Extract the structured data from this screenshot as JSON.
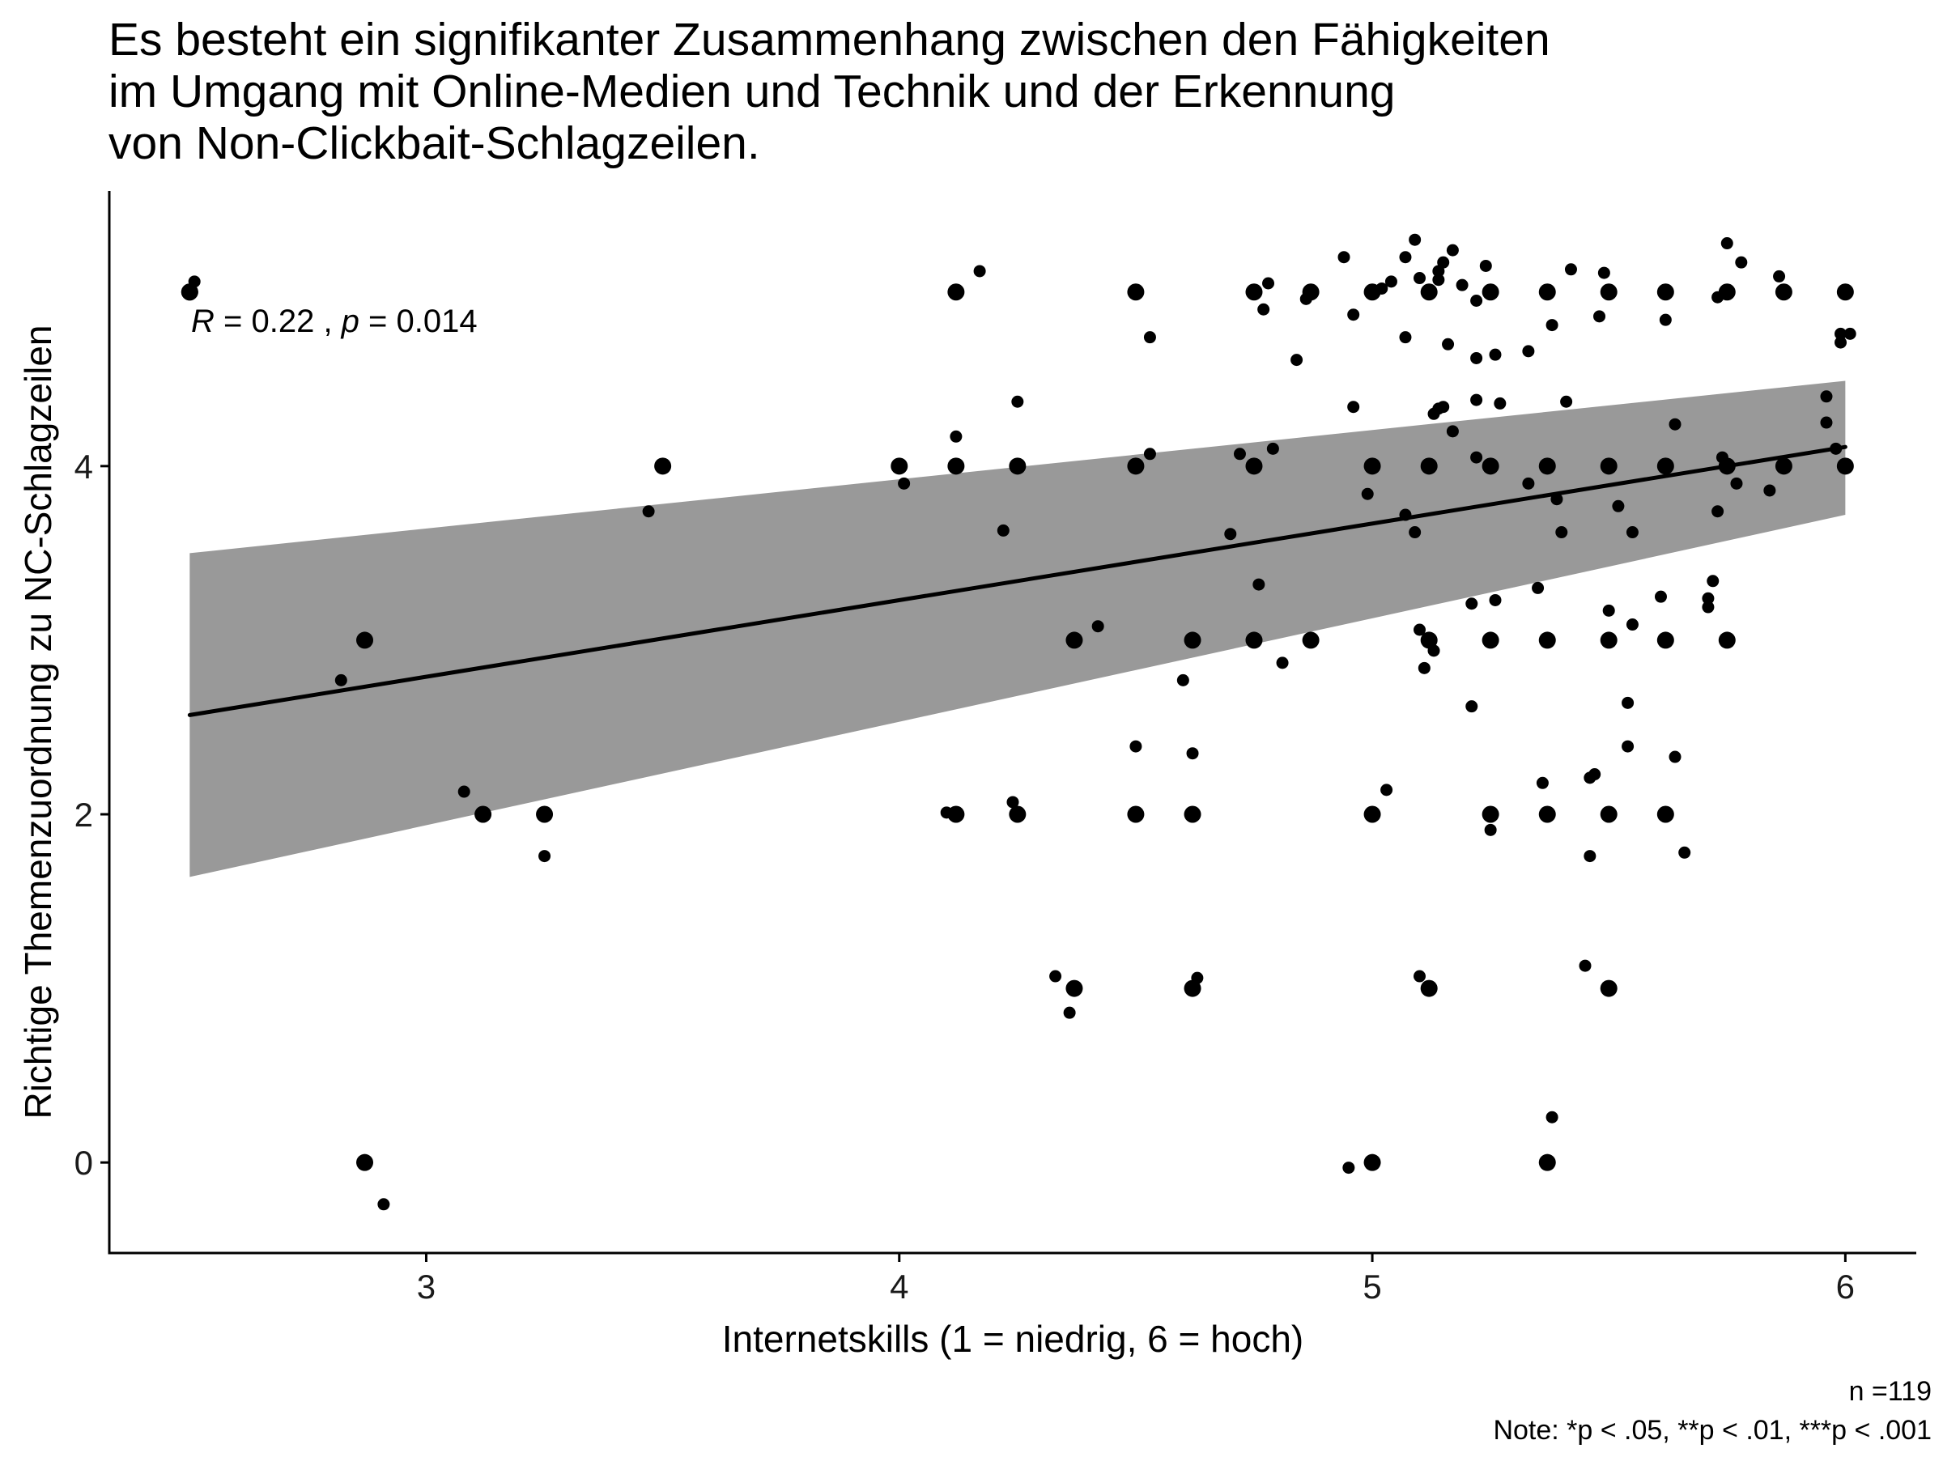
{
  "chart_data": {
    "type": "scatter",
    "title_lines": [
      "Es besteht ein signifikanter Zusammenhang zwischen den Fähigkeiten",
      "im Umgang mit Online-Medien und Technik und der Erkennung",
      "von Non-Clickbait-Schlagzeilen."
    ],
    "xlabel": "Internetskills (1 = niedrig, 6 = hoch)",
    "ylabel": "Richtige Themenzuordnung zu NC-Schlagzeilen",
    "xlim": [
      2.33,
      6.15
    ],
    "ylim": [
      -0.52,
      5.58
    ],
    "x_ticks": [
      3,
      4,
      5,
      6
    ],
    "x_tick_labels": [
      "3",
      "4",
      "5",
      "6"
    ],
    "y_ticks": [
      0,
      2,
      4
    ],
    "y_tick_labels": [
      "0",
      "2",
      "4"
    ],
    "grid": false,
    "annotation": {
      "r_symbol": "R",
      "r_value": " = 0.22 , ",
      "p_symbol": "p",
      "p_value": " = 0.014"
    },
    "caption_lines": [
      "n =119",
      "Note: *p < .05, **p < .01, ***p < .001"
    ],
    "regression": {
      "x": [
        2.5,
        6.0
      ],
      "y": [
        2.57,
        4.11
      ],
      "ci_lower": [
        1.64,
        3.72
      ],
      "ci_upper": [
        3.5,
        4.49
      ],
      "line_color": "#000000",
      "band_color": "#999999"
    },
    "point_color": "#000000",
    "points_large": [
      [
        2.5,
        5.0
      ],
      [
        2.5,
        5.0
      ],
      [
        2.87,
        3.0
      ],
      [
        2.87,
        0.0
      ],
      [
        3.12,
        2.0
      ],
      [
        3.25,
        2.0
      ],
      [
        3.5,
        4.0
      ],
      [
        4.0,
        4.0
      ],
      [
        4.12,
        5.0
      ],
      [
        4.12,
        4.0
      ],
      [
        4.12,
        2.0
      ],
      [
        4.25,
        4.0
      ],
      [
        4.25,
        2.0
      ],
      [
        4.37,
        3.0
      ],
      [
        4.37,
        1.0
      ],
      [
        4.5,
        5.0
      ],
      [
        4.5,
        4.0
      ],
      [
        4.5,
        2.0
      ],
      [
        4.62,
        3.0
      ],
      [
        4.62,
        2.0
      ],
      [
        4.62,
        1.0
      ],
      [
        4.75,
        5.0
      ],
      [
        4.75,
        4.0
      ],
      [
        4.75,
        3.0
      ],
      [
        4.87,
        5.0
      ],
      [
        4.87,
        3.0
      ],
      [
        5.0,
        5.0
      ],
      [
        5.0,
        4.0
      ],
      [
        5.0,
        2.0
      ],
      [
        5.0,
        0.0
      ],
      [
        5.12,
        5.0
      ],
      [
        5.12,
        4.0
      ],
      [
        5.12,
        3.0
      ],
      [
        5.12,
        1.0
      ],
      [
        5.25,
        5.0
      ],
      [
        5.25,
        4.0
      ],
      [
        5.25,
        3.0
      ],
      [
        5.25,
        2.0
      ],
      [
        5.37,
        5.0
      ],
      [
        5.37,
        4.0
      ],
      [
        5.37,
        3.0
      ],
      [
        5.37,
        2.0
      ],
      [
        5.37,
        0.0
      ],
      [
        5.5,
        5.0
      ],
      [
        5.5,
        4.0
      ],
      [
        5.5,
        3.0
      ],
      [
        5.5,
        2.0
      ],
      [
        5.5,
        1.0
      ],
      [
        5.62,
        5.0
      ],
      [
        5.62,
        4.0
      ],
      [
        5.62,
        3.0
      ],
      [
        5.62,
        2.0
      ],
      [
        5.75,
        5.0
      ],
      [
        5.75,
        4.0
      ],
      [
        5.75,
        3.0
      ],
      [
        5.87,
        5.0
      ],
      [
        5.87,
        4.0
      ],
      [
        6.0,
        5.0
      ],
      [
        6.0,
        4.0
      ]
    ],
    "points_small": [
      [
        2.51,
        5.06
      ],
      [
        2.82,
        2.77
      ],
      [
        2.91,
        -0.24
      ],
      [
        3.08,
        2.13
      ],
      [
        3.25,
        1.76
      ],
      [
        3.47,
        3.74
      ],
      [
        4.01,
        3.9
      ],
      [
        4.1,
        2.01
      ],
      [
        4.12,
        4.17
      ],
      [
        4.17,
        5.12
      ],
      [
        4.22,
        3.63
      ],
      [
        4.24,
        2.07
      ],
      [
        4.25,
        4.37
      ],
      [
        4.33,
        1.07
      ],
      [
        4.36,
        0.86
      ],
      [
        4.42,
        3.08
      ],
      [
        4.5,
        2.39
      ],
      [
        4.53,
        4.07
      ],
      [
        4.53,
        4.74
      ],
      [
        4.6,
        2.77
      ],
      [
        4.62,
        2.35
      ],
      [
        4.63,
        1.06
      ],
      [
        4.7,
        3.61
      ],
      [
        4.72,
        4.07
      ],
      [
        4.76,
        3.32
      ],
      [
        4.77,
        4.9
      ],
      [
        4.78,
        5.05
      ],
      [
        4.79,
        4.1
      ],
      [
        4.81,
        2.87
      ],
      [
        4.84,
        4.61
      ],
      [
        4.86,
        4.96
      ],
      [
        4.94,
        5.2
      ],
      [
        4.95,
        -0.03
      ],
      [
        4.96,
        4.34
      ],
      [
        4.96,
        4.87
      ],
      [
        4.99,
        3.84
      ],
      [
        5.02,
        5.02
      ],
      [
        5.03,
        2.14
      ],
      [
        5.04,
        5.06
      ],
      [
        5.07,
        4.74
      ],
      [
        5.07,
        3.72
      ],
      [
        5.07,
        5.2
      ],
      [
        5.09,
        5.3
      ],
      [
        5.09,
        3.62
      ],
      [
        5.1,
        3.06
      ],
      [
        5.1,
        1.07
      ],
      [
        5.1,
        5.08
      ],
      [
        5.11,
        2.84
      ],
      [
        5.13,
        4.3
      ],
      [
        5.13,
        2.94
      ],
      [
        5.14,
        5.07
      ],
      [
        5.14,
        4.33
      ],
      [
        5.14,
        5.12
      ],
      [
        5.15,
        4.34
      ],
      [
        5.15,
        5.17
      ],
      [
        5.16,
        4.7
      ],
      [
        5.17,
        5.24
      ],
      [
        5.17,
        4.2
      ],
      [
        5.19,
        5.04
      ],
      [
        5.21,
        2.62
      ],
      [
        5.21,
        3.21
      ],
      [
        5.22,
        4.95
      ],
      [
        5.22,
        4.62
      ],
      [
        5.22,
        4.38
      ],
      [
        5.22,
        4.05
      ],
      [
        5.24,
        5.15
      ],
      [
        5.25,
        1.91
      ],
      [
        5.26,
        4.64
      ],
      [
        5.26,
        3.23
      ],
      [
        5.27,
        4.36
      ],
      [
        5.33,
        4.66
      ],
      [
        5.33,
        3.9
      ],
      [
        5.35,
        3.3
      ],
      [
        5.36,
        2.18
      ],
      [
        5.38,
        4.81
      ],
      [
        5.38,
        0.26
      ],
      [
        5.39,
        3.81
      ],
      [
        5.4,
        3.62
      ],
      [
        5.41,
        4.37
      ],
      [
        5.42,
        5.13
      ],
      [
        5.45,
        1.13
      ],
      [
        5.46,
        2.21
      ],
      [
        5.46,
        1.76
      ],
      [
        5.47,
        2.23
      ],
      [
        5.48,
        4.86
      ],
      [
        5.49,
        5.11
      ],
      [
        5.5,
        3.17
      ],
      [
        5.52,
        3.77
      ],
      [
        5.54,
        2.64
      ],
      [
        5.54,
        2.39
      ],
      [
        5.55,
        3.09
      ],
      [
        5.55,
        3.62
      ],
      [
        5.61,
        3.25
      ],
      [
        5.62,
        4.84
      ],
      [
        5.64,
        4.24
      ],
      [
        5.64,
        2.33
      ],
      [
        5.66,
        1.78
      ],
      [
        5.71,
        3.24
      ],
      [
        5.71,
        3.19
      ],
      [
        5.72,
        3.34
      ],
      [
        5.73,
        3.74
      ],
      [
        5.73,
        4.97
      ],
      [
        5.74,
        4.05
      ],
      [
        5.75,
        5.28
      ],
      [
        5.75,
        5.0
      ],
      [
        5.77,
        3.9
      ],
      [
        5.78,
        5.17
      ],
      [
        5.84,
        3.86
      ],
      [
        5.86,
        5.09
      ],
      [
        5.87,
        4.01
      ],
      [
        5.96,
        4.25
      ],
      [
        5.96,
        4.4
      ],
      [
        5.98,
        4.1
      ],
      [
        5.99,
        4.71
      ],
      [
        5.99,
        4.76
      ],
      [
        6.01,
        4.76
      ]
    ]
  }
}
